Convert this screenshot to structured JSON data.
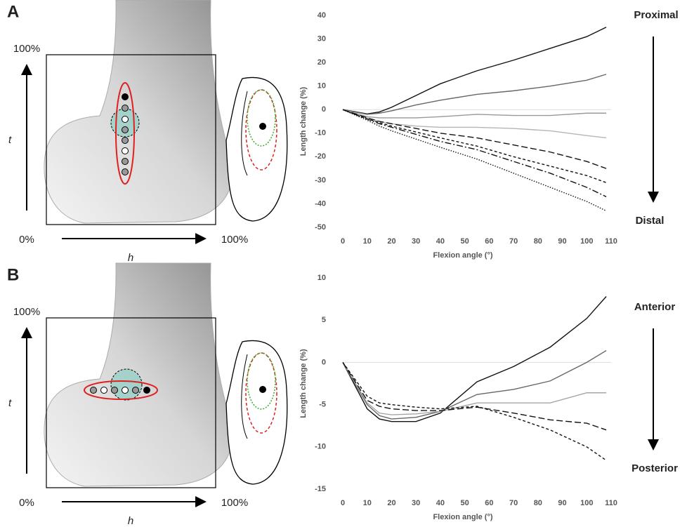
{
  "chart_data": [
    {
      "type": "line",
      "panel_label": "A",
      "illustration": {
        "t_label": "t",
        "h_label": "h",
        "top_label": "100%",
        "zero_label": "0%",
        "right_label": "100%"
      },
      "annotations": [
        "Proximal",
        "Distal"
      ],
      "x_label": "Flexion angle (°)",
      "y_label": "Length change (%)",
      "x": [
        0,
        10,
        15,
        20,
        30,
        40,
        55,
        70,
        85,
        100,
        108
      ],
      "series": [
        {
          "color": "#111111",
          "style": "solid",
          "values": [
            0,
            -1.8,
            -1,
            1,
            6,
            11,
            16.5,
            21,
            26,
            31,
            35
          ]
        },
        {
          "color": "#666666",
          "style": "solid",
          "values": [
            0,
            -2,
            -1.5,
            -0.5,
            2,
            4,
            6.5,
            8,
            10,
            12.5,
            15
          ]
        },
        {
          "color": "#999999",
          "style": "solid",
          "values": [
            0,
            -3,
            -3.5,
            -3.5,
            -3.5,
            -3,
            -2,
            -2.5,
            -2.5,
            -1.5,
            -1.5
          ]
        },
        {
          "color": "#b5b5b5",
          "style": "solid",
          "values": [
            0,
            -3.5,
            -5,
            -6,
            -7,
            -7.5,
            -7.5,
            -8,
            -9,
            -11,
            -12
          ]
        },
        {
          "color": "#111111",
          "style": "dashed",
          "values": [
            0,
            -3.5,
            -5,
            -6,
            -8,
            -10,
            -12,
            -15,
            -18,
            -22,
            -25
          ]
        },
        {
          "color": "#111111",
          "style": "shortdash",
          "values": [
            0,
            -4,
            -5.5,
            -7,
            -9.5,
            -12,
            -15.5,
            -20,
            -24,
            -28,
            -31
          ]
        },
        {
          "color": "#111111",
          "style": "dashdot",
          "values": [
            0,
            -4,
            -6,
            -7.5,
            -10.5,
            -13.5,
            -17,
            -22,
            -27,
            -33,
            -37
          ]
        },
        {
          "color": "#111111",
          "style": "dotted",
          "values": [
            0,
            -4.5,
            -7,
            -9,
            -12.5,
            -16,
            -21,
            -27,
            -33,
            -39,
            -43
          ]
        }
      ],
      "xlim": [
        0,
        110
      ],
      "xticks": [
        0,
        10,
        20,
        30,
        40,
        50,
        60,
        70,
        80,
        90,
        100,
        110
      ],
      "ylim": [
        -50,
        40
      ],
      "yticks": [
        -50,
        -40,
        -30,
        -20,
        -10,
        0,
        10,
        20,
        30,
        40
      ],
      "zero_line": true
    },
    {
      "type": "line",
      "panel_label": "B",
      "illustration": {
        "t_label": "t",
        "h_label": "h",
        "top_label": "100%",
        "zero_label": "0%",
        "right_label": "100%"
      },
      "annotations": [
        "Anterior",
        "Posterior"
      ],
      "x_label": "Flexion angle (°)",
      "y_label": "Length change (%)",
      "x": [
        0,
        10,
        15,
        20,
        30,
        40,
        55,
        70,
        85,
        100,
        108
      ],
      "series": [
        {
          "color": "#111111",
          "style": "solid",
          "values": [
            0,
            -5.5,
            -6.7,
            -7,
            -7,
            -6,
            -2.3,
            -0.5,
            1.8,
            5.2,
            7.8
          ]
        },
        {
          "color": "#666666",
          "style": "solid",
          "values": [
            0,
            -5,
            -6.3,
            -6.7,
            -6.5,
            -5.8,
            -3.8,
            -3.2,
            -2.2,
            0,
            1.4
          ]
        },
        {
          "color": "#a5a5a5",
          "style": "solid",
          "values": [
            0,
            -4.8,
            -6,
            -6.2,
            -6.1,
            -5.8,
            -4.8,
            -4.8,
            -4.8,
            -3.6,
            -3.6
          ]
        },
        {
          "color": "#111111",
          "style": "dashed",
          "values": [
            0,
            -4.5,
            -5.2,
            -5.5,
            -5.7,
            -5.7,
            -5.3,
            -6,
            -6.8,
            -7.2,
            -8
          ]
        },
        {
          "color": "#111111",
          "style": "shortdash",
          "values": [
            0,
            -4,
            -4.8,
            -5,
            -5.3,
            -5.5,
            -5.2,
            -6.5,
            -8,
            -10,
            -11.6
          ]
        }
      ],
      "xlim": [
        0,
        110
      ],
      "xticks": [
        0,
        10,
        20,
        30,
        40,
        50,
        60,
        70,
        80,
        90,
        100,
        110
      ],
      "ylim": [
        -15,
        10
      ],
      "yticks": [
        -15,
        -10,
        -5,
        0,
        5,
        10
      ],
      "zero_line": true
    }
  ]
}
